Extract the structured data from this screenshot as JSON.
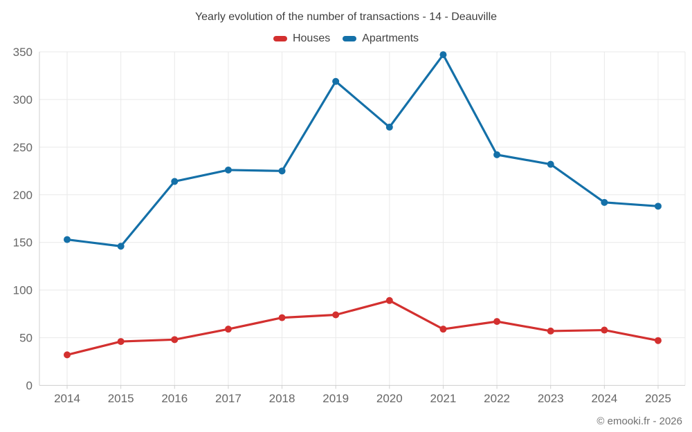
{
  "title": "Yearly evolution of the number of transactions - 14 - Deauville",
  "footer_credit": "© emooki.fr - 2026",
  "chart_data": {
    "type": "line",
    "title": "Yearly evolution of the number of transactions - 14 - Deauville",
    "categories": [
      "2014",
      "2015",
      "2016",
      "2017",
      "2018",
      "2019",
      "2020",
      "2021",
      "2022",
      "2023",
      "2024",
      "2025"
    ],
    "series": [
      {
        "name": "Houses",
        "color": "#d3302f",
        "values": [
          32,
          46,
          48,
          59,
          71,
          74,
          89,
          59,
          67,
          57,
          58,
          47
        ]
      },
      {
        "name": "Apartments",
        "color": "#1470a8",
        "values": [
          153,
          146,
          214,
          226,
          225,
          319,
          271,
          347,
          242,
          232,
          192,
          188
        ]
      }
    ],
    "xlabel": "",
    "ylabel": "",
    "ylim": [
      0,
      350
    ],
    "yticks": [
      0,
      50,
      100,
      150,
      200,
      250,
      300,
      350
    ],
    "grid": true,
    "legend_position": "top"
  },
  "styles": {
    "background": "#ffffff",
    "grid_color": "#e9e9e9",
    "axis_color": "#cfcfcf",
    "tick_label_color": "#666666",
    "title_color": "#3f3f3f",
    "footer_color": "#707070"
  }
}
